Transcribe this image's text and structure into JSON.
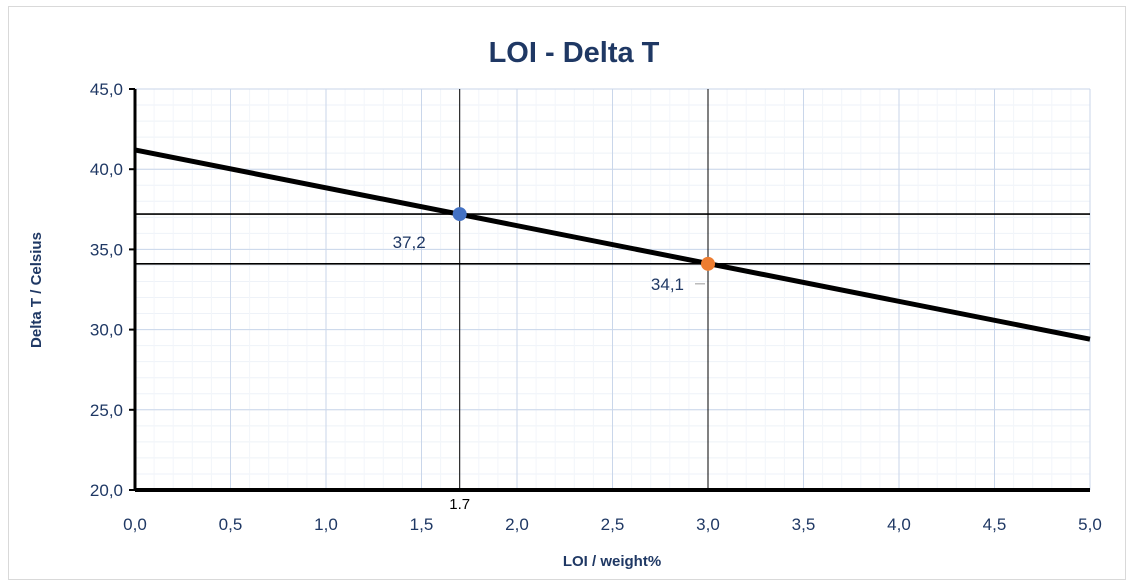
{
  "chart_data": {
    "type": "scatter",
    "title": "LOI - Delta T",
    "xlabel": "LOI / weight%",
    "ylabel": "Delta T / Celsius",
    "xlim": [
      0,
      5
    ],
    "ylim": [
      20,
      45
    ],
    "xticks": [
      "0,0",
      "0,5",
      "1,0",
      "1,5",
      "2,0",
      "2,5",
      "3,0",
      "3,5",
      "4,0",
      "4,5",
      "5,0"
    ],
    "yticks": [
      "20,0",
      "25,0",
      "30,0",
      "35,0",
      "40,0",
      "45,0"
    ],
    "xtick_values": [
      0,
      0.5,
      1,
      1.5,
      2,
      2.5,
      3,
      3.5,
      4,
      4.5,
      5
    ],
    "ytick_values": [
      20,
      25,
      30,
      35,
      40,
      45
    ],
    "grid": true,
    "trendline": {
      "x": [
        0,
        5
      ],
      "y": [
        41.2,
        29.4
      ],
      "color": "#000000"
    },
    "points": [
      {
        "x": 1.7,
        "y": 37.2,
        "label": "37,2",
        "color": "#4472c4"
      },
      {
        "x": 3.0,
        "y": 34.1,
        "label": "34,1",
        "color": "#ed7d31"
      }
    ],
    "reference_lines": {
      "horizontal": [
        37.2,
        34.1
      ],
      "vertical": [
        1.7,
        3.0
      ]
    },
    "vertical_marker_label": {
      "x": 1.7,
      "text": "1.7"
    }
  }
}
